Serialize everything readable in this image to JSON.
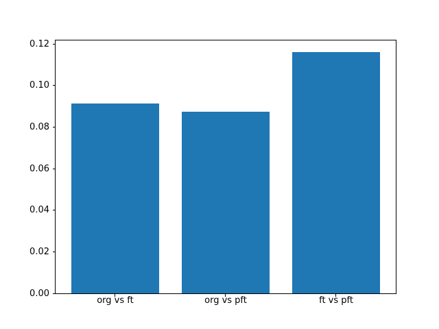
{
  "chart_data": {
    "type": "bar",
    "categories": [
      "org vs ft",
      "org vs pft",
      "ft vs pft"
    ],
    "values": [
      0.0913,
      0.0875,
      0.1161
    ],
    "title": "",
    "xlabel": "",
    "ylabel": "",
    "ytick_values": [
      0,
      0.02,
      0.04,
      0.06,
      0.08,
      0.1,
      0.12
    ],
    "ytick_labels": [
      "0.00",
      "0.02",
      "0.04",
      "0.06",
      "0.08",
      "0.10",
      "0.12"
    ],
    "ylim": [
      0,
      0.1218
    ],
    "xlim": [
      -0.54,
      2.54
    ],
    "bar_width": 0.8,
    "bar_color": "#1f77b4",
    "background_color": "#ffffff",
    "spine_color": "#000000",
    "grid": false,
    "legend": false
  }
}
